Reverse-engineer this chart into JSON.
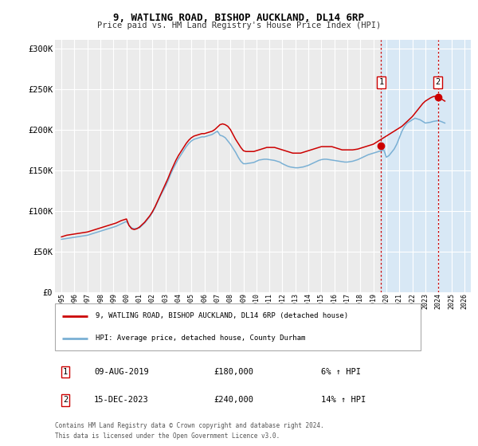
{
  "title": "9, WATLING ROAD, BISHOP AUCKLAND, DL14 6RP",
  "subtitle": "Price paid vs. HM Land Registry's House Price Index (HPI)",
  "legend_label_red": "9, WATLING ROAD, BISHOP AUCKLAND, DL14 6RP (detached house)",
  "legend_label_blue": "HPI: Average price, detached house, County Durham",
  "footnote1": "Contains HM Land Registry data © Crown copyright and database right 2024.",
  "footnote2": "This data is licensed under the Open Government Licence v3.0.",
  "marker1_date": "09-AUG-2019",
  "marker1_price": "£180,000",
  "marker1_hpi": "6% ↑ HPI",
  "marker2_date": "15-DEC-2023",
  "marker2_price": "£240,000",
  "marker2_hpi": "14% ↑ HPI",
  "marker1_x": 2019.6,
  "marker1_y": 180000,
  "marker2_x": 2023.96,
  "marker2_y": 240000,
  "xlim": [
    1994.5,
    2026.5
  ],
  "ylim": [
    0,
    310000
  ],
  "yticks": [
    0,
    50000,
    100000,
    150000,
    200000,
    250000,
    300000
  ],
  "ytick_labels": [
    "£0",
    "£50K",
    "£100K",
    "£150K",
    "£200K",
    "£250K",
    "£300K"
  ],
  "xticks": [
    1995,
    1996,
    1997,
    1998,
    1999,
    2000,
    2001,
    2002,
    2003,
    2004,
    2005,
    2006,
    2007,
    2008,
    2009,
    2010,
    2011,
    2012,
    2013,
    2014,
    2015,
    2016,
    2017,
    2018,
    2019,
    2020,
    2021,
    2022,
    2023,
    2024,
    2025,
    2026
  ],
  "background_color": "#ffffff",
  "plot_bg_color": "#ebebeb",
  "shaded_region_color": "#d8e8f5",
  "red_line_color": "#cc0000",
  "blue_line_color": "#7ab0d4",
  "grid_color": "#ffffff",
  "red_x": [
    1995.0,
    1995.2,
    1995.4,
    1995.6,
    1995.8,
    1996.0,
    1996.2,
    1996.4,
    1996.6,
    1996.8,
    1997.0,
    1997.2,
    1997.4,
    1997.6,
    1997.8,
    1998.0,
    1998.2,
    1998.4,
    1998.6,
    1998.8,
    1999.0,
    1999.2,
    1999.4,
    1999.6,
    1999.8,
    2000.0,
    2000.2,
    2000.4,
    2000.6,
    2000.8,
    2001.0,
    2001.2,
    2001.4,
    2001.6,
    2001.8,
    2002.0,
    2002.2,
    2002.4,
    2002.6,
    2002.8,
    2003.0,
    2003.2,
    2003.4,
    2003.6,
    2003.8,
    2004.0,
    2004.2,
    2004.4,
    2004.6,
    2004.8,
    2005.0,
    2005.2,
    2005.4,
    2005.6,
    2005.8,
    2006.0,
    2006.2,
    2006.4,
    2006.6,
    2006.8,
    2007.0,
    2007.2,
    2007.4,
    2007.6,
    2007.8,
    2008.0,
    2008.2,
    2008.4,
    2008.6,
    2008.8,
    2009.0,
    2009.2,
    2009.4,
    2009.6,
    2009.8,
    2010.0,
    2010.2,
    2010.4,
    2010.6,
    2010.8,
    2011.0,
    2011.2,
    2011.4,
    2011.6,
    2011.8,
    2012.0,
    2012.2,
    2012.4,
    2012.6,
    2012.8,
    2013.0,
    2013.2,
    2013.4,
    2013.6,
    2013.8,
    2014.0,
    2014.2,
    2014.4,
    2014.6,
    2014.8,
    2015.0,
    2015.2,
    2015.4,
    2015.6,
    2015.8,
    2016.0,
    2016.2,
    2016.4,
    2016.6,
    2016.8,
    2017.0,
    2017.2,
    2017.4,
    2017.6,
    2017.8,
    2018.0,
    2018.2,
    2018.4,
    2018.6,
    2018.8,
    2019.0,
    2019.2,
    2019.4,
    2019.6,
    2019.8,
    2020.0,
    2020.2,
    2020.4,
    2020.6,
    2020.8,
    2021.0,
    2021.2,
    2021.4,
    2021.6,
    2021.8,
    2022.0,
    2022.2,
    2022.4,
    2022.6,
    2022.8,
    2023.0,
    2023.2,
    2023.4,
    2023.6,
    2023.8,
    2024.0,
    2024.2,
    2024.5
  ],
  "red_y": [
    68000,
    69000,
    70000,
    70500,
    71000,
    71500,
    72000,
    72500,
    73000,
    73500,
    74000,
    75000,
    76000,
    77000,
    78000,
    79000,
    80000,
    81000,
    82000,
    83000,
    84000,
    85000,
    86500,
    88000,
    89000,
    90000,
    82000,
    78000,
    77000,
    78000,
    80000,
    83000,
    86000,
    90000,
    94000,
    99000,
    105000,
    112000,
    119000,
    126000,
    133000,
    140000,
    148000,
    155000,
    162000,
    168000,
    173000,
    178000,
    183000,
    187000,
    190000,
    192000,
    193000,
    194000,
    195000,
    195000,
    196000,
    197000,
    198000,
    200000,
    203000,
    206000,
    207000,
    206000,
    204000,
    200000,
    194000,
    188000,
    183000,
    178000,
    174000,
    173000,
    173000,
    173000,
    173000,
    174000,
    175000,
    176000,
    177000,
    178000,
    178000,
    178000,
    178000,
    177000,
    176000,
    175000,
    174000,
    173000,
    172000,
    171000,
    171000,
    171000,
    171000,
    172000,
    173000,
    174000,
    175000,
    176000,
    177000,
    178000,
    179000,
    179000,
    179000,
    179000,
    179000,
    178000,
    177000,
    176000,
    175000,
    175000,
    175000,
    175000,
    175000,
    175500,
    176000,
    177000,
    178000,
    179000,
    180000,
    181000,
    182000,
    184000,
    186000,
    188000,
    190000,
    192000,
    194000,
    196000,
    198000,
    200000,
    202000,
    204000,
    207000,
    210000,
    213000,
    216000,
    220000,
    224000,
    228000,
    232000,
    235000,
    237000,
    239000,
    240500,
    241000,
    240000,
    238000,
    235000
  ],
  "blue_x": [
    1995.0,
    1995.2,
    1995.4,
    1995.6,
    1995.8,
    1996.0,
    1996.2,
    1996.4,
    1996.6,
    1996.8,
    1997.0,
    1997.2,
    1997.4,
    1997.6,
    1997.8,
    1998.0,
    1998.2,
    1998.4,
    1998.6,
    1998.8,
    1999.0,
    1999.2,
    1999.4,
    1999.6,
    1999.8,
    2000.0,
    2000.2,
    2000.4,
    2000.6,
    2000.8,
    2001.0,
    2001.2,
    2001.4,
    2001.6,
    2001.8,
    2002.0,
    2002.2,
    2002.4,
    2002.6,
    2002.8,
    2003.0,
    2003.2,
    2003.4,
    2003.6,
    2003.8,
    2004.0,
    2004.2,
    2004.4,
    2004.6,
    2004.8,
    2005.0,
    2005.2,
    2005.4,
    2005.6,
    2005.8,
    2006.0,
    2006.2,
    2006.4,
    2006.6,
    2006.8,
    2007.0,
    2007.2,
    2007.4,
    2007.6,
    2007.8,
    2008.0,
    2008.2,
    2008.4,
    2008.6,
    2008.8,
    2009.0,
    2009.2,
    2009.4,
    2009.6,
    2009.8,
    2010.0,
    2010.2,
    2010.4,
    2010.6,
    2010.8,
    2011.0,
    2011.2,
    2011.4,
    2011.6,
    2011.8,
    2012.0,
    2012.2,
    2012.4,
    2012.6,
    2012.8,
    2013.0,
    2013.2,
    2013.4,
    2013.6,
    2013.8,
    2014.0,
    2014.2,
    2014.4,
    2014.6,
    2014.8,
    2015.0,
    2015.2,
    2015.4,
    2015.6,
    2015.8,
    2016.0,
    2016.2,
    2016.4,
    2016.6,
    2016.8,
    2017.0,
    2017.2,
    2017.4,
    2017.6,
    2017.8,
    2018.0,
    2018.2,
    2018.4,
    2018.6,
    2018.8,
    2019.0,
    2019.2,
    2019.4,
    2019.6,
    2019.8,
    2020.0,
    2020.2,
    2020.4,
    2020.6,
    2020.8,
    2021.0,
    2021.2,
    2021.4,
    2021.6,
    2021.8,
    2022.0,
    2022.2,
    2022.4,
    2022.6,
    2022.8,
    2023.0,
    2023.2,
    2023.4,
    2023.6,
    2023.8,
    2024.0,
    2024.2,
    2024.5
  ],
  "blue_y": [
    65000,
    65500,
    66000,
    66500,
    67000,
    67500,
    68000,
    68500,
    69000,
    69500,
    70000,
    71000,
    72000,
    73000,
    74000,
    75000,
    76000,
    77000,
    78000,
    79000,
    80000,
    81000,
    82500,
    84000,
    85500,
    87000,
    82000,
    79000,
    78000,
    78500,
    79000,
    82000,
    85000,
    89000,
    93000,
    98000,
    104000,
    111000,
    118000,
    124000,
    130000,
    137000,
    145000,
    152000,
    158000,
    164000,
    169000,
    174000,
    179000,
    183000,
    186000,
    188000,
    189000,
    190000,
    191000,
    191000,
    192000,
    193000,
    194000,
    196000,
    198000,
    193000,
    192000,
    190000,
    186000,
    182000,
    177000,
    172000,
    166000,
    161000,
    158000,
    158000,
    158500,
    159000,
    159500,
    161000,
    162500,
    163000,
    163500,
    163500,
    163000,
    162500,
    162000,
    161000,
    160000,
    158000,
    156500,
    155000,
    154000,
    153500,
    153000,
    153000,
    153500,
    154000,
    155000,
    156000,
    157500,
    159000,
    160500,
    162000,
    163000,
    163500,
    163500,
    163000,
    162500,
    162000,
    161500,
    161000,
    160500,
    160000,
    160000,
    160500,
    161000,
    162000,
    163000,
    164500,
    166000,
    167500,
    169000,
    170000,
    171000,
    172000,
    173000,
    174000,
    175000,
    166000,
    168000,
    172000,
    176000,
    182000,
    190000,
    198000,
    204000,
    208000,
    210000,
    212000,
    214000,
    213000,
    212000,
    210000,
    208000,
    208500,
    209000,
    210000,
    210500,
    211000,
    210000,
    208000
  ]
}
